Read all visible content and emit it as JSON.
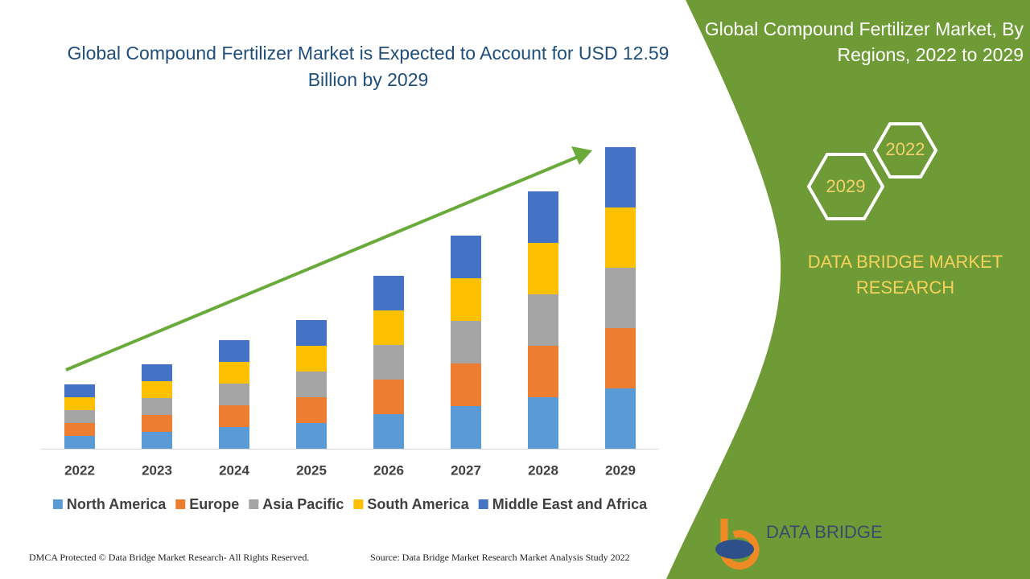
{
  "chart_data": {
    "type": "bar",
    "stacked": true,
    "title": "Global Compound Fertilizer Market is Expected to Account for USD 12.59 Billion by 2029",
    "categories": [
      "2022",
      "2023",
      "2024",
      "2025",
      "2026",
      "2027",
      "2028",
      "2029"
    ],
    "series": [
      {
        "name": "North America",
        "color": "#5b9bd5",
        "values": [
          16,
          21,
          27,
          32,
          43,
          53,
          64,
          75
        ]
      },
      {
        "name": "Europe",
        "color": "#ed7d31",
        "values": [
          16,
          21,
          27,
          32,
          43,
          53,
          64,
          75
        ]
      },
      {
        "name": "Asia Pacific",
        "color": "#a5a5a5",
        "values": [
          16,
          21,
          27,
          32,
          43,
          53,
          64,
          75
        ]
      },
      {
        "name": "South America",
        "color": "#ffc000",
        "values": [
          16,
          21,
          27,
          32,
          43,
          53,
          64,
          75
        ]
      },
      {
        "name": "Middle East and Africa",
        "color": "#4472c4",
        "values": [
          16,
          21,
          27,
          32,
          43,
          53,
          64,
          75
        ]
      }
    ],
    "ylim": [
      0,
      380
    ]
  },
  "side_panel": {
    "title": "Global Compound Fertilizer Market, By Regions, 2022 to 2029",
    "hexagons": [
      "2022",
      "2029"
    ],
    "brand": "DATA BRIDGE MARKET RESEARCH"
  },
  "logo": {
    "name": "DATA BRIDGE"
  },
  "footer": {
    "copyright": "DMCA Protected © Data Bridge Market Research- All Rights Reserved.",
    "source": "Source: Data Bridge Market Research Market Analysis Study 2022"
  }
}
